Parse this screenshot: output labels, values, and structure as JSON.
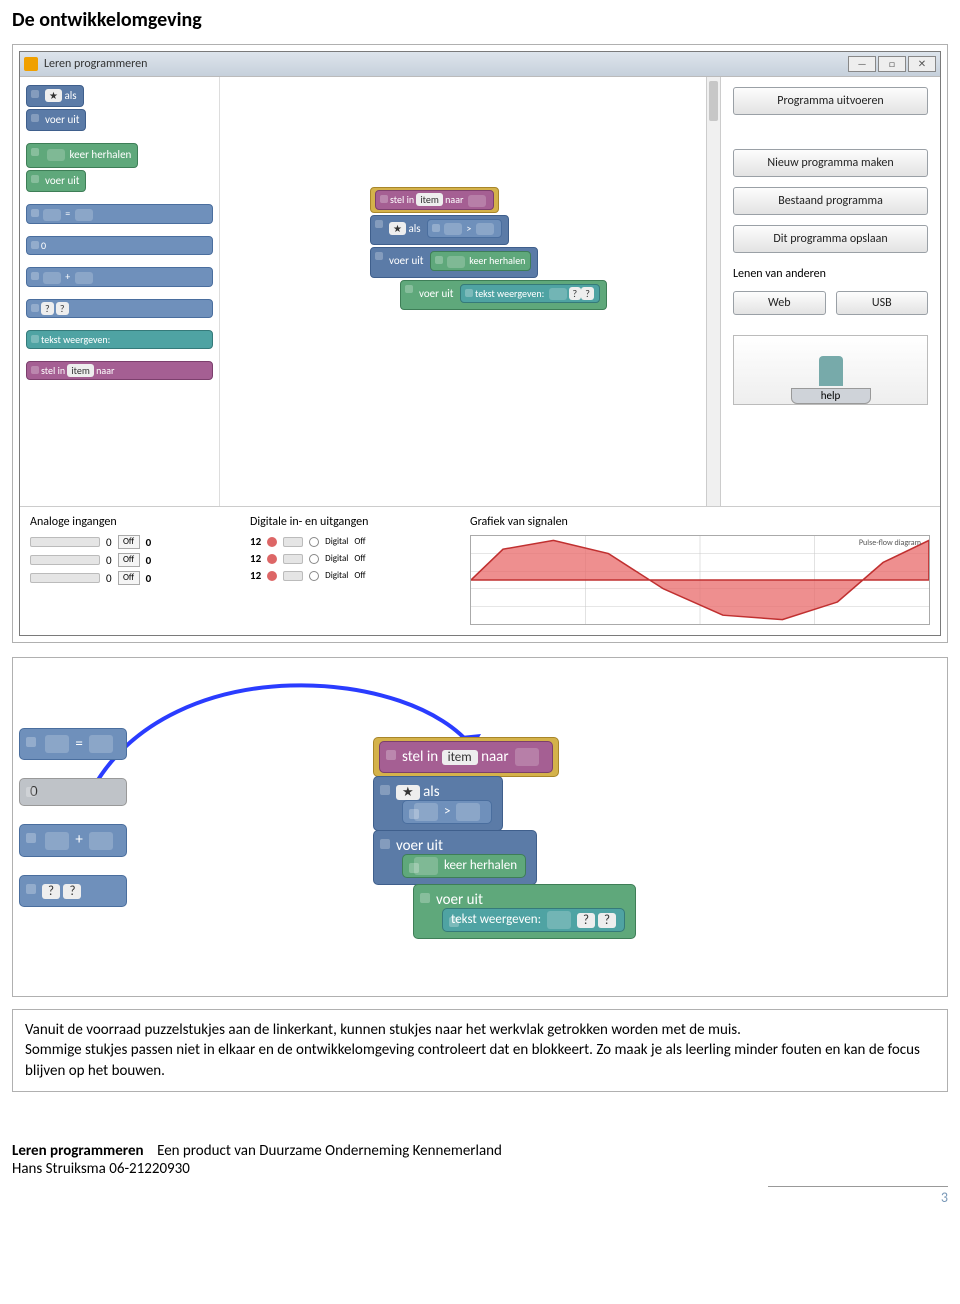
{
  "page": {
    "title": "De ontwikkelomgeving",
    "caption": "Vanuit de voorraad puzzelstukjes aan de linkerkant, kunnen stukjes naar het werkvlak getrokken worden met de muis.\nSommige stukjes passen niet in elkaar en de ontwikkelomgeving controleert dat en blokkeert. Zo maak je als leerling minder fouten en kan de focus blijven op het bouwen.",
    "footer_line1_a": "Leren programmeren",
    "footer_line1_b": "Een product van Duurzame Onderneming Kennemerland",
    "footer_line2": "Hans Struiksma 06-21220930",
    "page_number": "3"
  },
  "window": {
    "title": "Leren programmeren",
    "buttons": {
      "min": "—",
      "max": "□",
      "close": "✕"
    }
  },
  "palette": {
    "als": "als",
    "voer_uit": "voer uit",
    "keer_herhalen": "keer herhalen",
    "equals": "=",
    "zero": "0",
    "plus": "+",
    "q": "?",
    "tekst": "tekst weergeven:",
    "stel_in": "stel in",
    "item": "item",
    "naar": "naar"
  },
  "canvas": {
    "stel_in": "stel in",
    "item": "item",
    "naar": "naar",
    "als": "als",
    "voer_uit": "voer uit",
    "keer_herhalen": "keer herhalen",
    "tekst": "tekst weergeven:",
    "gt": ">"
  },
  "right_panel": {
    "run": "Programma uitvoeren",
    "new": "Nieuw programma maken",
    "open": "Bestaand programma",
    "save": "Dit programma opslaan",
    "borrow_label": "Lenen van anderen",
    "web": "Web",
    "usb": "USB",
    "help": "help"
  },
  "io": {
    "analog_title": "Analoge ingangen",
    "digital_title": "Digitale in- en uitgangen",
    "graph_title": "Grafiek van signalen",
    "off": "Off",
    "digital": "Digital",
    "analog_rows": [
      {
        "slider": 0,
        "badge": "Off",
        "val": "0"
      },
      {
        "slider": 0,
        "badge": "Off",
        "val": "0"
      },
      {
        "slider": 0,
        "badge": "Off",
        "val": "0"
      }
    ],
    "digital_rows": [
      {
        "num": "12",
        "mode": "Digital",
        "state": "Off"
      },
      {
        "num": "12",
        "mode": "Digital",
        "state": "Off"
      },
      {
        "num": "12",
        "mode": "Digital",
        "state": "Off"
      }
    ],
    "graph": {
      "inner_title": "Pulse-flow diagram",
      "fill": "#e86a6a",
      "stroke": "#c03030",
      "grid": "#cccccc",
      "bg": "#ffffff",
      "points": [
        [
          0,
          0.5
        ],
        [
          0.07,
          0.85
        ],
        [
          0.18,
          0.95
        ],
        [
          0.3,
          0.8
        ],
        [
          0.42,
          0.4
        ],
        [
          0.55,
          0.1
        ],
        [
          0.68,
          0.05
        ],
        [
          0.8,
          0.25
        ],
        [
          0.9,
          0.7
        ],
        [
          1.0,
          0.95
        ]
      ]
    }
  },
  "zoom": {
    "equals": "=",
    "zero": "0",
    "plus": "+",
    "q": "?",
    "stel_in": "stel in",
    "item": "item",
    "naar": "naar",
    "als": "als",
    "voer_uit": "voer uit",
    "keer_herhalen": "keer herhalen",
    "tekst": "tekst weergeven:",
    "gt": ">",
    "arrow_color": "#2a3cff"
  },
  "colors": {
    "blue": "#5b7ba7",
    "blue2": "#6f90bb",
    "green": "#5fa87b",
    "teal": "#4fa3a3",
    "purple": "#a55f93",
    "yellow": "#d4b24a"
  }
}
